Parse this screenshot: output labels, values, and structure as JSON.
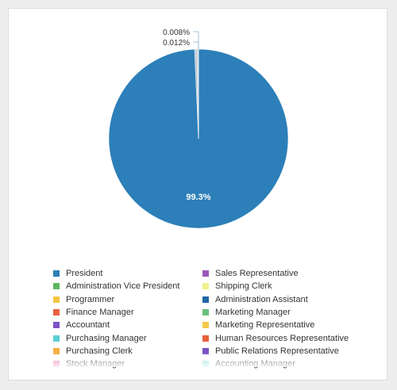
{
  "chart_data": {
    "type": "pie",
    "slices": [
      {
        "label": "President",
        "value": 99.3,
        "color": "#2c7fb8"
      },
      {
        "label": "Administration Vice President",
        "value": 0.38,
        "color": "#b8c7d3"
      },
      {
        "label": "Programmer",
        "value": 0.3,
        "color": "#c9d4dc"
      },
      {
        "label": "Sales Representative",
        "value": 0.012,
        "color": "#9b59b6"
      },
      {
        "label": "Shipping Clerk",
        "value": 0.008,
        "color": "#f0f08c"
      }
    ],
    "data_labels": [
      {
        "text": "99.3%",
        "slice": "President"
      },
      {
        "text": "0.008%",
        "slice": "Shipping Clerk"
      },
      {
        "text": "0.012%",
        "slice": "Sales Representative"
      }
    ],
    "legend": [
      {
        "label": "President",
        "color": "#2c7fb8"
      },
      {
        "label": "Sales Representative",
        "color": "#9b59b6"
      },
      {
        "label": "Administration Vice President",
        "color": "#5cb85c"
      },
      {
        "label": "Shipping Clerk",
        "color": "#f0f08c"
      },
      {
        "label": "Programmer",
        "color": "#f4c542"
      },
      {
        "label": "Administration Assistant",
        "color": "#2166a5"
      },
      {
        "label": "Finance Manager",
        "color": "#e8613c"
      },
      {
        "label": "Marketing Manager",
        "color": "#6abf7b"
      },
      {
        "label": "Accountant",
        "color": "#7b54c4"
      },
      {
        "label": "Marketing Representative",
        "color": "#f2c94c"
      },
      {
        "label": "Purchasing Manager",
        "color": "#5ccfd2"
      },
      {
        "label": "Human Resources Representative",
        "color": "#e8613c"
      },
      {
        "label": "Purchasing Clerk",
        "color": "#f5b041"
      },
      {
        "label": "Public Relations Representative",
        "color": "#7b54c4"
      },
      {
        "label": "Stock Manager",
        "color": "#ee82b8"
      },
      {
        "label": "Accounting Manager",
        "color": "#9fe3e0"
      }
    ],
    "legend_placement": "bottom"
  }
}
